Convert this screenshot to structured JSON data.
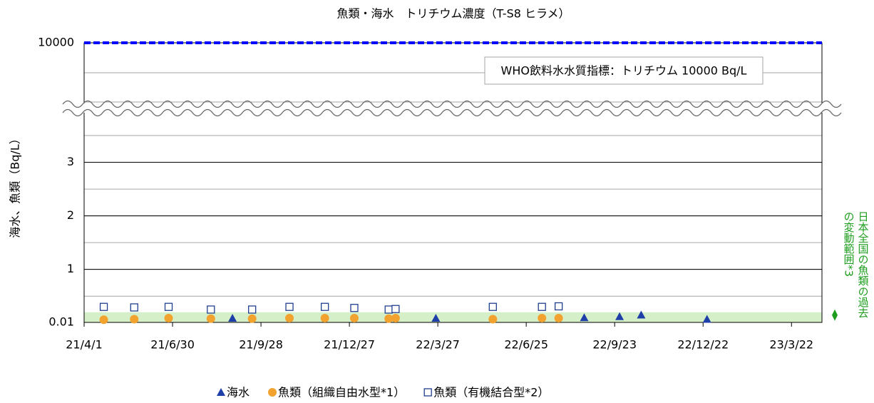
{
  "chart_data": {
    "type": "scatter",
    "title": "魚類・海水　トリチウム濃度（T-S8 ヒラメ）",
    "y_label": "海水、魚類（Bq/L）",
    "annotation": "WHO飲料水水質指標：トリチウム 10000 Bq/L",
    "reference_line": {
      "value": 10000,
      "color": "#0000ff"
    },
    "range_band": {
      "values": [
        0.01,
        0.2
      ],
      "color": "#d5f0c8",
      "marker_color": "#1e9e1e",
      "label": [
        "日本全国の魚類の過去",
        "の変動範囲*3"
      ]
    },
    "xlim": [
      "2021-04-01",
      "2023-04-22"
    ],
    "xticks": [
      {
        "value": "2021-04-01",
        "label": "21/4/1"
      },
      {
        "value": "2021-06-30",
        "label": "21/6/30"
      },
      {
        "value": "2021-09-28",
        "label": "21/9/28"
      },
      {
        "value": "2021-12-27",
        "label": "21/12/27"
      },
      {
        "value": "2022-03-27",
        "label": "22/3/27"
      },
      {
        "value": "2022-06-25",
        "label": "22/6/25"
      },
      {
        "value": "2022-09-23",
        "label": "22/9/23"
      },
      {
        "value": "2022-12-22",
        "label": "22/12/22"
      },
      {
        "value": "2023-03-22",
        "label": "23/3/22"
      }
    ],
    "ylim": [
      0.01,
      10000
    ],
    "ybreak": 3.9,
    "yticks": [
      0.01,
      1,
      2,
      3,
      10000
    ],
    "grid": true,
    "legend": "bottom",
    "series": [
      {
        "name": "海水",
        "color": "#1f3fa8",
        "marker": "triangle",
        "x": [
          "2021-08-30",
          "2022-03-25",
          "2022-08-23",
          "2022-09-28",
          "2022-10-20",
          "2022-12-26"
        ],
        "values": [
          0.09,
          0.09,
          0.1,
          0.12,
          0.15,
          0.07
        ]
      },
      {
        "name": "魚類（組織自由水型*1）",
        "color": "#f2a22e",
        "marker": "circle",
        "x": [
          "2021-04-21",
          "2021-05-22",
          "2021-06-26",
          "2021-08-08",
          "2021-09-19",
          "2021-10-27",
          "2021-12-02",
          "2022-01-01",
          "2022-02-05",
          "2022-02-12",
          "2022-05-22",
          "2022-07-11",
          "2022-07-28"
        ],
        "values": [
          0.06,
          0.07,
          0.09,
          0.08,
          0.08,
          0.09,
          0.09,
          0.09,
          0.08,
          0.09,
          0.07,
          0.09,
          0.09
        ]
      },
      {
        "name": "魚類（有機結合型*2）",
        "color": "#1f3f8f",
        "marker": "square",
        "x": [
          "2021-04-21",
          "2021-05-22",
          "2021-06-26",
          "2021-08-08",
          "2021-09-19",
          "2021-10-27",
          "2021-12-02",
          "2022-01-01",
          "2022-02-05",
          "2022-02-12",
          "2022-05-22",
          "2022-07-11",
          "2022-07-28"
        ],
        "values": [
          0.3,
          0.29,
          0.3,
          0.25,
          0.25,
          0.3,
          0.3,
          0.28,
          0.25,
          0.26,
          0.3,
          0.3,
          0.31
        ]
      }
    ]
  }
}
